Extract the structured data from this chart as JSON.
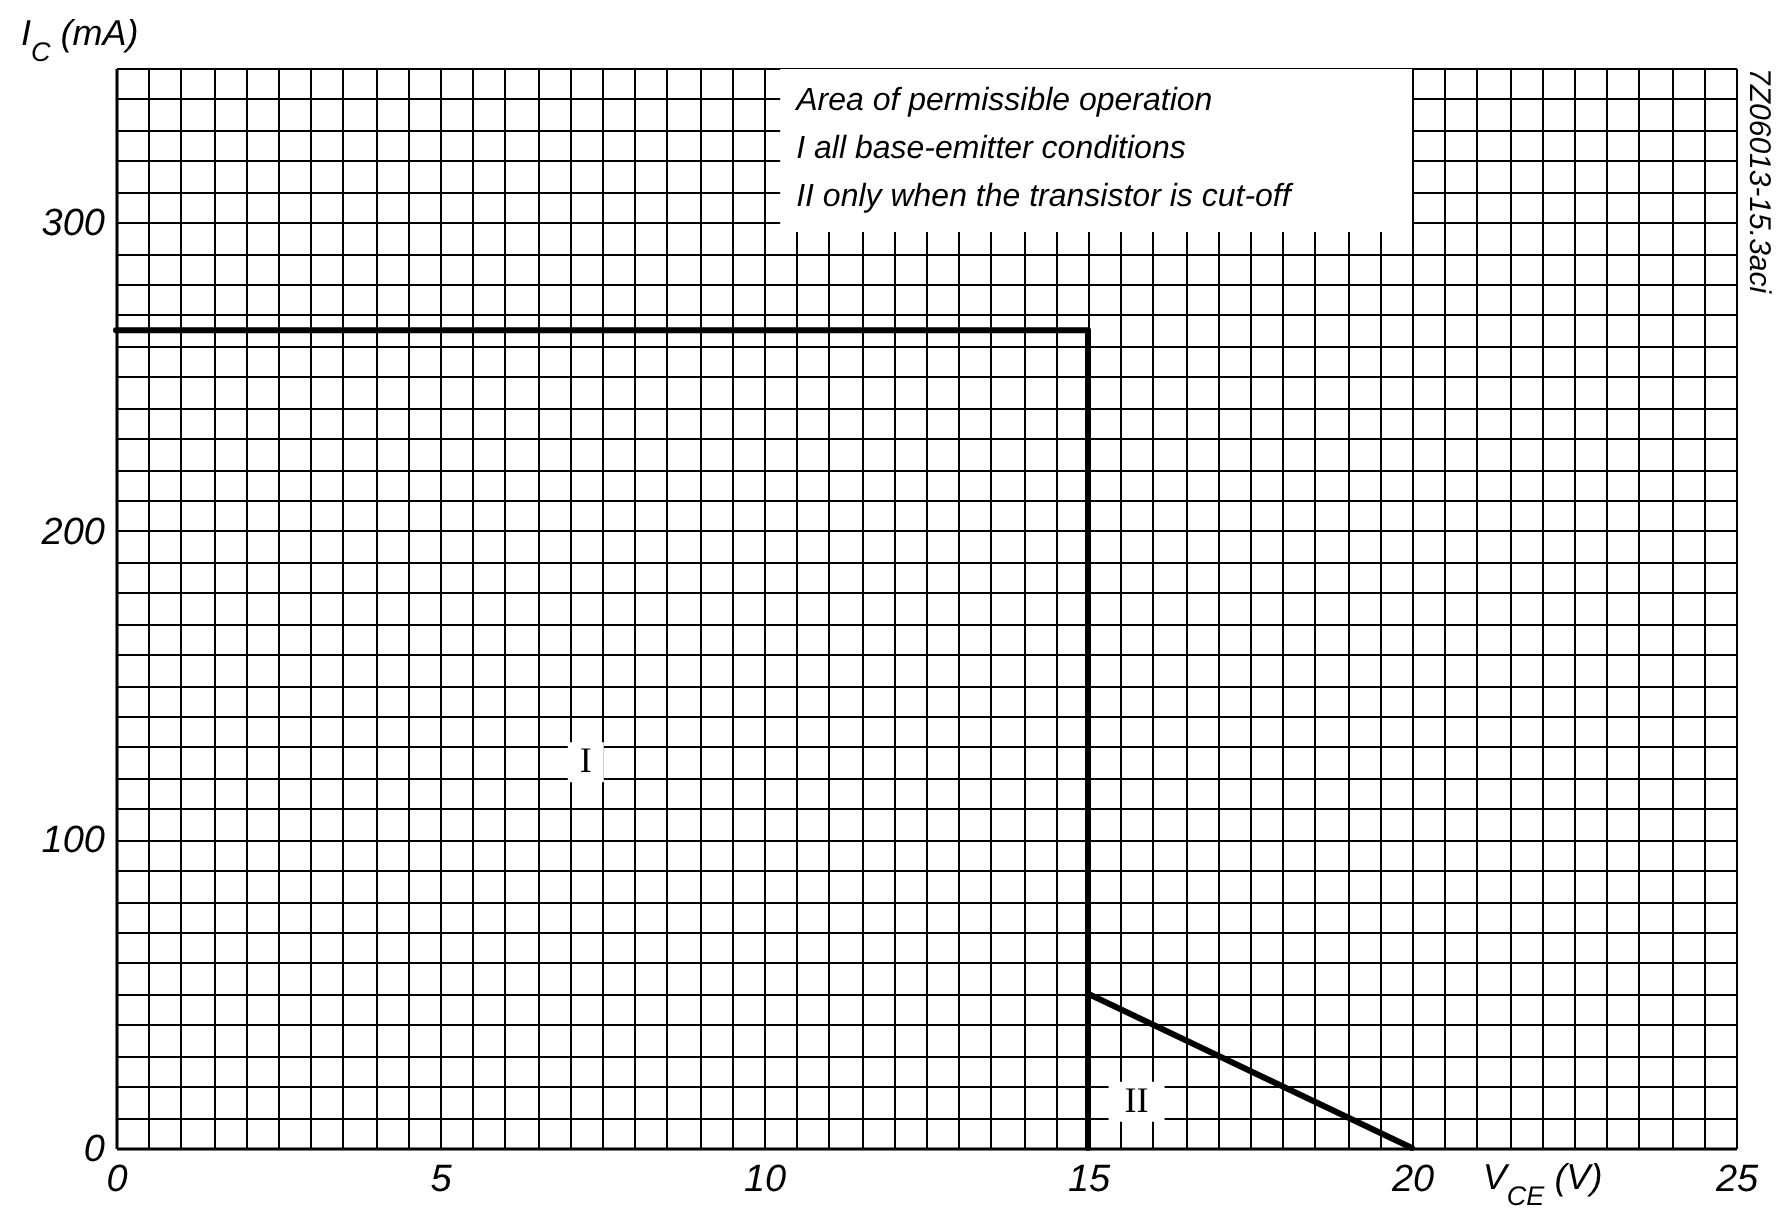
{
  "chart_data": {
    "type": "line",
    "xlabel": "V$_{CE}$ (V)",
    "ylabel": "I$_{C}$ (mA)",
    "series": [
      {
        "color": "#000000",
        "x": [
          0,
          15,
          15
        ],
        "values": [
          265,
          265,
          0
        ]
      },
      {
        "color": "#000000",
        "x": [
          15,
          20
        ],
        "values": [
          50,
          0
        ]
      }
    ],
    "xlim": [
      0,
      25
    ],
    "ylim": [
      0,
      350
    ],
    "xticks": [
      0,
      {
        "value": 0.5,
        "label": null
      },
      {
        "value": 1,
        "label": null
      },
      {
        "value": 1.5,
        "label": null
      },
      {
        "value": 2,
        "label": null
      },
      {
        "value": 2.5,
        "label": null
      },
      {
        "value": 3,
        "label": null
      },
      {
        "value": 3.5,
        "label": null
      },
      {
        "value": 4,
        "label": null
      },
      {
        "value": 4.5,
        "label": null
      },
      5,
      {
        "value": 5.5,
        "label": null
      },
      {
        "value": 6,
        "label": null
      },
      {
        "value": 6.5,
        "label": null
      },
      {
        "value": 7,
        "label": null
      },
      {
        "value": 7.5,
        "label": null
      },
      {
        "value": 8,
        "label": null
      },
      {
        "value": 8.5,
        "label": null
      },
      {
        "value": 9,
        "label": null
      },
      {
        "value": 9.5,
        "label": null
      },
      10,
      {
        "value": 10.5,
        "label": null
      },
      {
        "value": 11,
        "label": null
      },
      {
        "value": 11.5,
        "label": null
      },
      {
        "value": 12,
        "label": null
      },
      {
        "value": 12.5,
        "label": null
      },
      {
        "value": 13,
        "label": null
      },
      {
        "value": 13.5,
        "label": null
      },
      {
        "value": 14,
        "label": null
      },
      {
        "value": 14.5,
        "label": null
      },
      15,
      {
        "value": 15.5,
        "label": null
      },
      {
        "value": 16,
        "label": null
      },
      {
        "value": 16.5,
        "label": null
      },
      {
        "value": 17,
        "label": null
      },
      {
        "value": 17.5,
        "label": null
      },
      {
        "value": 18,
        "label": null
      },
      {
        "value": 18.5,
        "label": null
      },
      {
        "value": 19,
        "label": null
      },
      {
        "value": 19.5,
        "label": null
      },
      20,
      {
        "value": 20.5,
        "label": null
      },
      {
        "value": 21,
        "label": null
      },
      {
        "value": 21.5,
        "label": null
      },
      {
        "value": 22,
        "label": null
      },
      {
        "value": 22.5,
        "label": null
      },
      {
        "value": 23,
        "label": null
      },
      {
        "value": 23.5,
        "label": null
      },
      {
        "value": 24,
        "label": null
      },
      {
        "value": 24.5,
        "label": null
      },
      25
    ],
    "yticks": [
      0,
      {
        "value": 10,
        "label": null
      },
      {
        "value": 20,
        "label": null
      },
      {
        "value": 30,
        "label": null
      },
      {
        "value": 40,
        "label": null
      },
      {
        "value": 50,
        "label": null
      },
      {
        "value": 60,
        "label": null
      },
      {
        "value": 70,
        "label": null
      },
      {
        "value": 80,
        "label": null
      },
      {
        "value": 90,
        "label": null
      },
      100,
      {
        "value": 110,
        "label": null
      },
      {
        "value": 120,
        "label": null
      },
      {
        "value": 130,
        "label": null
      },
      {
        "value": 140,
        "label": null
      },
      {
        "value": 150,
        "label": null
      },
      {
        "value": 160,
        "label": null
      },
      {
        "value": 170,
        "label": null
      },
      {
        "value": 180,
        "label": null
      },
      {
        "value": 190,
        "label": null
      },
      200,
      {
        "value": 210,
        "label": null
      },
      {
        "value": 220,
        "label": null
      },
      {
        "value": 230,
        "label": null
      },
      {
        "value": 240,
        "label": null
      },
      {
        "value": 250,
        "label": null
      },
      {
        "value": 260,
        "label": null
      },
      {
        "value": 270,
        "label": null
      },
      {
        "value": 280,
        "label": null
      },
      {
        "value": 290,
        "label": null
      },
      300,
      {
        "value": 310,
        "label": null
      },
      {
        "value": 320,
        "label": null
      },
      {
        "value": 330,
        "label": null
      },
      {
        "value": 340,
        "label": null
      },
      {
        "value": 350,
        "label": null
      }
    ],
    "grid": true,
    "annotations": [
      "Area of permissible operation",
      "I all base-emitter conditions",
      "II only when the transistor is cut-off",
      "I",
      "II",
      "7Z06013-15.3aci"
    ]
  }
}
